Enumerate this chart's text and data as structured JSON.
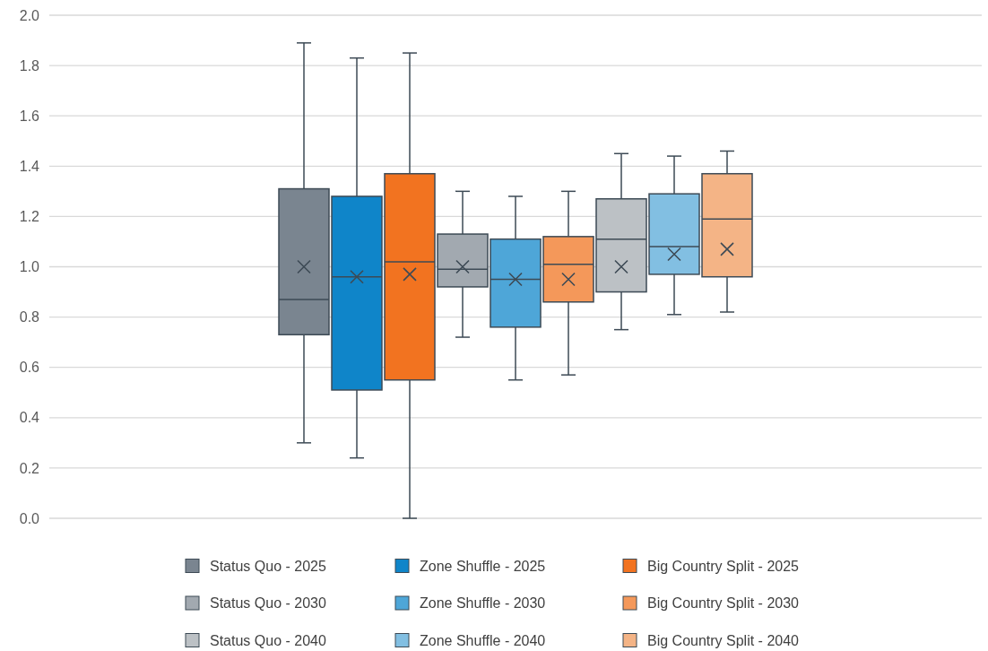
{
  "chart_data": {
    "type": "box",
    "categories": [
      null
    ],
    "ylim": [
      0,
      2
    ],
    "yticks": [
      {
        "value": 0,
        "label": "0.0"
      },
      {
        "value": 0.2,
        "label": "0.2"
      },
      {
        "value": 0.4,
        "label": "0.4"
      },
      {
        "value": 0.6,
        "label": "0.6"
      },
      {
        "value": 0.8,
        "label": "0.8"
      },
      {
        "value": 1,
        "label": "1.0"
      },
      {
        "value": 1.2,
        "label": "1.2"
      },
      {
        "value": 1.4,
        "label": "1.4"
      },
      {
        "value": 1.6,
        "label": "1.6"
      },
      {
        "value": 1.8,
        "label": "1.8"
      },
      {
        "value": 2,
        "label": "2.0"
      }
    ],
    "grid": "y",
    "legend": "bottom",
    "marker": "cross",
    "series": [
      {
        "name": "Status Quo - 2025",
        "color": "#7a8590",
        "boxes": [
          {
            "low": 0.3,
            "q1": 0.73,
            "median": 0.87,
            "q3": 1.31,
            "high": 1.89,
            "mean": 1.0
          }
        ]
      },
      {
        "name": "Zone Shuffle - 2025",
        "color": "#0f85c9",
        "boxes": [
          {
            "low": 0.24,
            "q1": 0.51,
            "median": 0.96,
            "q3": 1.28,
            "high": 1.83,
            "mean": 0.96
          }
        ]
      },
      {
        "name": "Big Country Split - 2025",
        "color": "#f27320",
        "boxes": [
          {
            "low": 0,
            "q1": 0.55,
            "median": 1.02,
            "q3": 1.37,
            "high": 1.85,
            "mean": 0.97
          }
        ]
      },
      {
        "name": "Status Quo - 2030",
        "color": "#a2a9b0",
        "boxes": [
          {
            "low": 0.72,
            "q1": 0.92,
            "median": 0.99,
            "q3": 1.13,
            "high": 1.3,
            "mean": 1.0
          }
        ]
      },
      {
        "name": "Zone Shuffle - 2030",
        "color": "#4ea6d8",
        "boxes": [
          {
            "low": 0.55,
            "q1": 0.76,
            "median": 0.95,
            "q3": 1.11,
            "high": 1.28,
            "mean": 0.95
          }
        ]
      },
      {
        "name": "Big Country Split - 2030",
        "color": "#f4985a",
        "boxes": [
          {
            "low": 0.57,
            "q1": 0.86,
            "median": 1.01,
            "q3": 1.12,
            "high": 1.3,
            "mean": 0.95
          }
        ]
      },
      {
        "name": "Status Quo - 2040",
        "color": "#bcc1c5",
        "boxes": [
          {
            "low": 0.75,
            "q1": 0.9,
            "median": 1.11,
            "q3": 1.27,
            "high": 1.45,
            "mean": 1.0
          }
        ]
      },
      {
        "name": "Zone Shuffle - 2040",
        "color": "#82bfe2",
        "boxes": [
          {
            "low": 0.81,
            "q1": 0.97,
            "median": 1.08,
            "q3": 1.29,
            "high": 1.44,
            "mean": 1.05
          }
        ]
      },
      {
        "name": "Big Country Split - 2040",
        "color": "#f4b486",
        "boxes": [
          {
            "low": 0.82,
            "q1": 0.96,
            "median": 1.19,
            "q3": 1.37,
            "high": 1.46,
            "mean": 1.07
          }
        ]
      }
    ]
  }
}
